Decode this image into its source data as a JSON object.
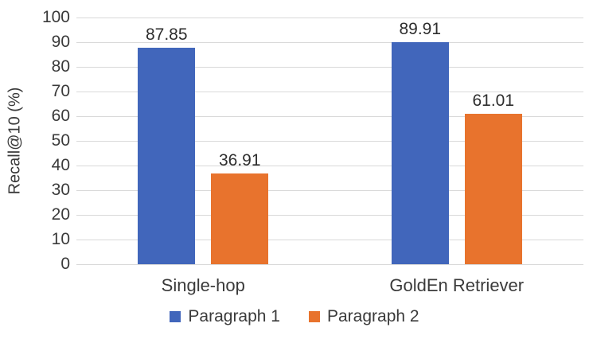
{
  "chart_data": {
    "type": "bar",
    "title": "",
    "categories": [
      "Single-hop",
      "GoldEn Retriever"
    ],
    "series": [
      {
        "name": "Paragraph 1",
        "color": "#4166BB",
        "values": [
          87.85,
          89.91
        ]
      },
      {
        "name": "Paragraph 2",
        "color": "#E8732D",
        "values": [
          36.91,
          61.01
        ]
      }
    ],
    "data_labels": [
      [
        "87.85",
        "89.91"
      ],
      [
        "36.91",
        "61.01"
      ]
    ],
    "ylabel": "Recall@10 (%)",
    "ylim": [
      0,
      100
    ],
    "yticks": [
      0,
      10,
      20,
      30,
      40,
      50,
      60,
      70,
      80,
      90,
      100
    ],
    "grid": "horizontal",
    "gridline_color": "#D9D9D9",
    "legend_position": "bottom",
    "legend": [
      "Paragraph 1",
      "Paragraph 2"
    ],
    "text_color": "#3A3A3A"
  }
}
